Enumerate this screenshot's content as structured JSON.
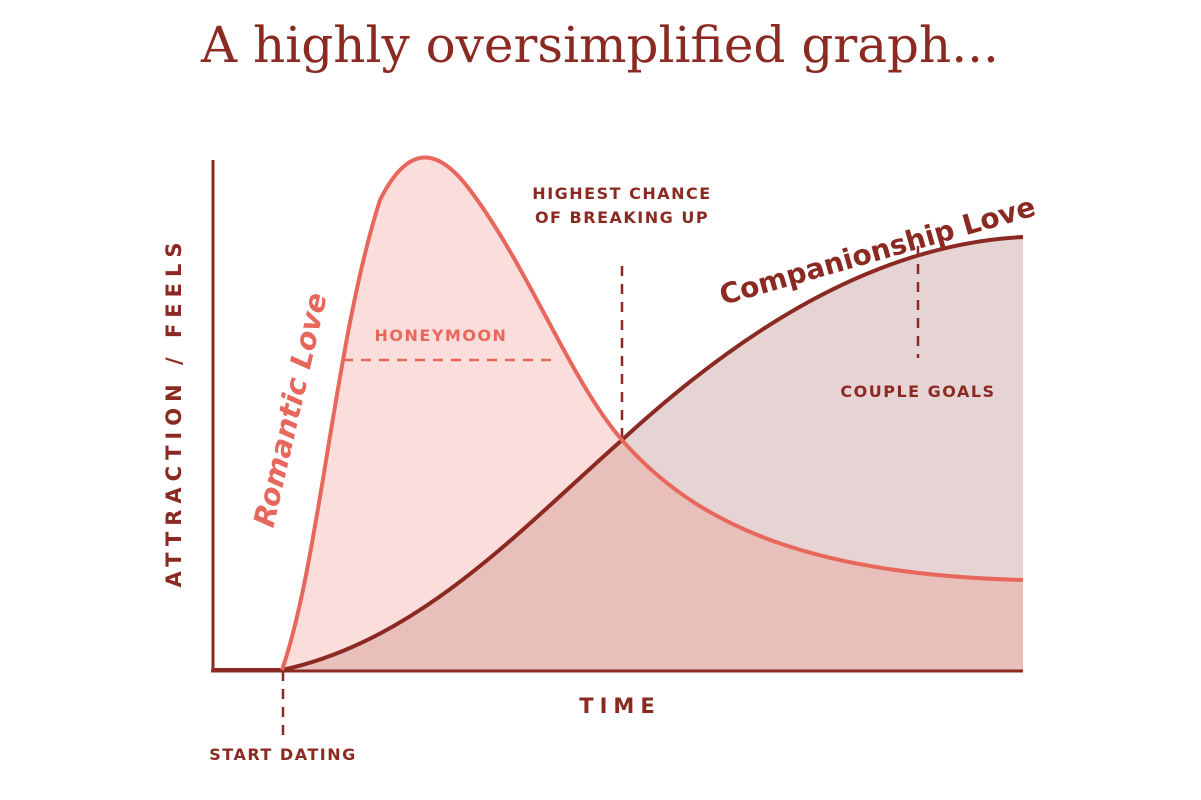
{
  "colors": {
    "dark": "#8b2a22",
    "coral": "#e8675c",
    "romantic_fill": "#fbdedb",
    "overlap_fill": "#e8bfba",
    "companion_fill": "#e6d3d3"
  },
  "chart_data": {
    "type": "area",
    "title": "A highly oversimplified graph...",
    "xlabel": "TIME",
    "ylabel": "ATTRACTION / FEELS",
    "series": [
      {
        "name": "Romantic Love"
      },
      {
        "name": "Companionship Love"
      }
    ],
    "annotations": {
      "start": "START DATING",
      "honeymoon": "HONEYMOON",
      "breakup_line1": "HIGHEST CHANCE",
      "breakup_line2": "OF BREAKING UP",
      "goals": "COUPLE GOALS"
    }
  }
}
